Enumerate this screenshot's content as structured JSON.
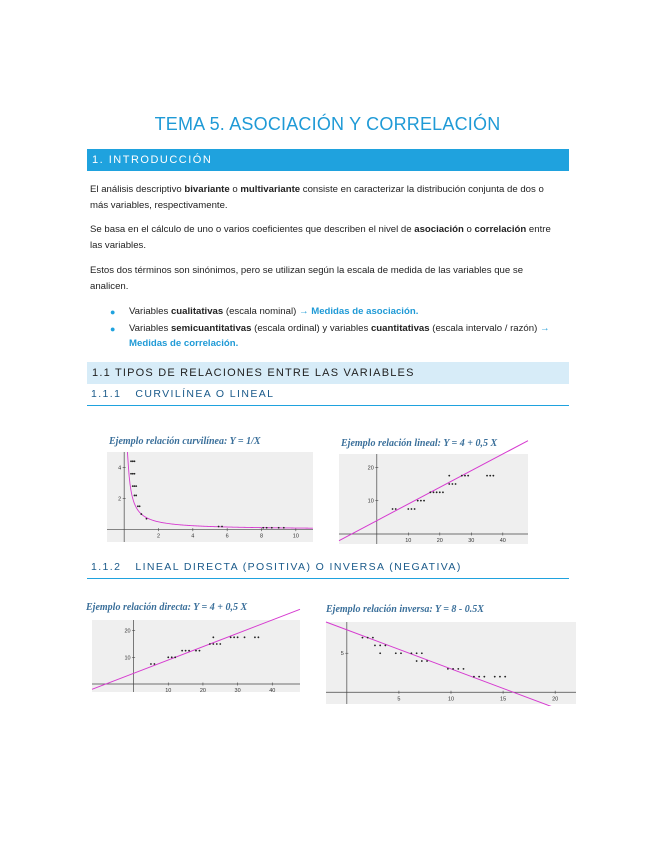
{
  "title": "TEMA 5. ASOCIACIÓN Y CORRELACIÓN",
  "section1": {
    "heading": "1. INTRODUCCIÓN"
  },
  "p1": {
    "a": "El análisis descriptivo ",
    "b1": "bivariante",
    "c": " o ",
    "b2": "multivariante",
    "d": " consiste en caracterizar la distribución conjunta de dos o más variables, respectivamente."
  },
  "p2": {
    "a": "Se basa en el cálculo de uno o varios coeficientes que describen el nivel de ",
    "b1": "asociación",
    "c": " o ",
    "b2": "correlación",
    "d": " entre las variables."
  },
  "p3": "Estos dos términos son sinónimos, pero se utilizan según la escala de medida de las variables que se analicen.",
  "bullets": [
    {
      "a": "Variables ",
      "b": "cualitativas",
      "c": " (escala nominal) ",
      "link": "→ Medidas de asociación."
    },
    {
      "a": "Variables ",
      "b": "semicuantitativas",
      "c": " (escala ordinal) y variables ",
      "b2": "cuantitativas",
      "d": " (escala intervalo / razón) ",
      "link": "→ Medidas de correlación."
    }
  ],
  "section11": {
    "heading": "1.1 TIPOS DE RELACIONES ENTRE LAS VARIABLES"
  },
  "section111": {
    "num": "1.1.1",
    "label": "CURVILÍNEA O LINEAL"
  },
  "section112": {
    "num": "1.1.2",
    "label": "LINEAL DIRECTA (POSITIVA) O INVERSA (NEGATIVA)"
  },
  "colors": {
    "accent": "#1fa2de",
    "curve": "#d63ad0",
    "subheader_bg": "#d7ecf8"
  },
  "chart_data": [
    {
      "type": "scatter",
      "title": "Ejemplo relación curvilínea:  Y = 1/X",
      "x_ticks": [
        "2",
        "4",
        "6",
        "8",
        "10"
      ],
      "y_ticks": [
        "2",
        "4"
      ],
      "xlim": [
        -1,
        11
      ],
      "ylim": [
        -0.8,
        5
      ],
      "points": [
        [
          0.4,
          4.4
        ],
        [
          0.5,
          4.4
        ],
        [
          0.6,
          4.4
        ],
        [
          0.4,
          3.6
        ],
        [
          0.5,
          3.6
        ],
        [
          0.6,
          3.6
        ],
        [
          0.5,
          2.8
        ],
        [
          0.6,
          2.8
        ],
        [
          0.7,
          2.8
        ],
        [
          0.6,
          2.2
        ],
        [
          0.7,
          2.2
        ],
        [
          0.8,
          1.5
        ],
        [
          0.9,
          1.5
        ],
        [
          1.0,
          1.0
        ],
        [
          1.3,
          0.7
        ],
        [
          5.5,
          0.2
        ],
        [
          5.7,
          0.2
        ],
        [
          8.1,
          0.12
        ],
        [
          8.3,
          0.12
        ],
        [
          8.6,
          0.12
        ],
        [
          9.0,
          0.12
        ],
        [
          9.3,
          0.12
        ]
      ],
      "curve": "y = 1/x"
    },
    {
      "type": "scatter",
      "title": "Ejemplo relación lineal:    Y = 4 + 0,5 X",
      "x_ticks": [
        "10",
        "20",
        "30",
        "40"
      ],
      "y_ticks": [
        "10",
        "20"
      ],
      "xlim": [
        -12,
        48
      ],
      "ylim": [
        -3,
        24
      ],
      "points": [
        [
          5,
          7.5
        ],
        [
          6,
          7.5
        ],
        [
          10,
          7.5
        ],
        [
          11,
          7.5
        ],
        [
          12,
          7.5
        ],
        [
          13,
          10
        ],
        [
          14,
          10
        ],
        [
          15,
          10
        ],
        [
          17,
          12.5
        ],
        [
          18,
          12.5
        ],
        [
          19,
          12.5
        ],
        [
          20,
          12.5
        ],
        [
          21,
          12.5
        ],
        [
          23,
          15
        ],
        [
          24,
          15
        ],
        [
          25,
          15
        ],
        [
          23,
          17.5
        ],
        [
          27,
          17.5
        ],
        [
          28,
          17.5
        ],
        [
          29,
          17.5
        ],
        [
          35,
          17.5
        ],
        [
          36,
          17.5
        ],
        [
          37,
          17.5
        ]
      ],
      "line": "y = 4 + 0.5x"
    },
    {
      "type": "scatter",
      "title": "Ejemplo relación directa:    Y = 4 + 0,5 X",
      "x_ticks": [
        "10",
        "20",
        "30",
        "40"
      ],
      "y_ticks": [
        "10",
        "20"
      ],
      "xlim": [
        -12,
        48
      ],
      "ylim": [
        -3,
        24
      ],
      "points": [
        [
          5,
          7.5
        ],
        [
          6,
          7.5
        ],
        [
          10,
          10
        ],
        [
          11,
          10
        ],
        [
          12,
          10
        ],
        [
          14,
          12.5
        ],
        [
          15,
          12.5
        ],
        [
          16,
          12.5
        ],
        [
          18,
          12.5
        ],
        [
          19,
          12.5
        ],
        [
          22,
          15
        ],
        [
          23,
          15
        ],
        [
          24,
          15
        ],
        [
          25,
          15
        ],
        [
          23,
          17.5
        ],
        [
          28,
          17.5
        ],
        [
          29,
          17.5
        ],
        [
          30,
          17.5
        ],
        [
          32,
          17.5
        ],
        [
          35,
          17.5
        ],
        [
          36,
          17.5
        ]
      ],
      "line": "y = 4 + 0.5x"
    },
    {
      "type": "scatter",
      "title": "Ejemplo relación inversa:  Y = 8 - 0.5X",
      "x_ticks": [
        "5",
        "10",
        "15",
        "20"
      ],
      "y_ticks": [
        "5"
      ],
      "xlim": [
        -2,
        22
      ],
      "ylim": [
        -1.5,
        9
      ],
      "points": [
        [
          1.5,
          7
        ],
        [
          2,
          7
        ],
        [
          2.5,
          7
        ],
        [
          2.7,
          6
        ],
        [
          3.2,
          6
        ],
        [
          3.7,
          6
        ],
        [
          3.2,
          5
        ],
        [
          4.7,
          5
        ],
        [
          5.2,
          5
        ],
        [
          6.2,
          5
        ],
        [
          6.7,
          5
        ],
        [
          7.2,
          5
        ],
        [
          6.7,
          4
        ],
        [
          7.2,
          4
        ],
        [
          7.7,
          4
        ],
        [
          9.7,
          3
        ],
        [
          10.2,
          3
        ],
        [
          10.7,
          3
        ],
        [
          11.2,
          3
        ],
        [
          12.2,
          2
        ],
        [
          12.7,
          2
        ],
        [
          13.2,
          2
        ],
        [
          14.2,
          2
        ],
        [
          14.7,
          2
        ],
        [
          15.2,
          2
        ]
      ],
      "line": "y = 8 - 0.5x"
    }
  ]
}
